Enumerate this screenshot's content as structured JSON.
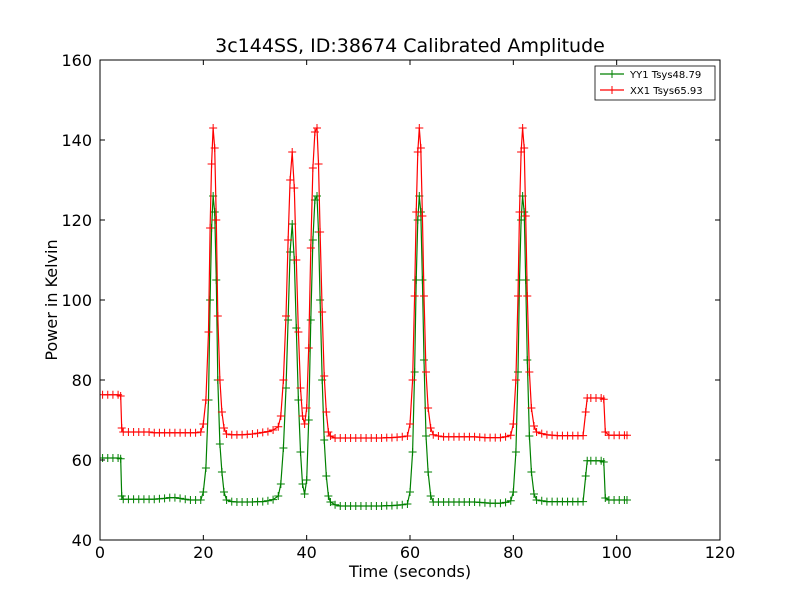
{
  "chart_data": {
    "type": "line",
    "title": "3c144SS, ID:38674 Calibrated Amplitude",
    "xlabel": "Time (seconds)",
    "ylabel": "Power in Kelvin",
    "xlim": [
      0,
      120
    ],
    "ylim": [
      40,
      160
    ],
    "xticks": [
      "0",
      "20",
      "40",
      "60",
      "80",
      "100",
      "120"
    ],
    "yticks": [
      "40",
      "60",
      "80",
      "100",
      "120",
      "140",
      "160"
    ],
    "grid": false,
    "legend_position": "top-right",
    "colors": {
      "YY1": "#008000",
      "XX1": "#ff0000"
    },
    "series": [
      {
        "name": "YY1 Tsys48.79",
        "color": "#008000",
        "marker": "+",
        "points": [
          [
            0.5,
            60.5
          ],
          [
            1.5,
            60.5
          ],
          [
            2.5,
            60.5
          ],
          [
            3.5,
            60.5
          ],
          [
            4.0,
            60.3
          ],
          [
            4.2,
            51
          ],
          [
            4.5,
            50.2
          ],
          [
            5.5,
            50.2
          ],
          [
            6.5,
            50.2
          ],
          [
            7.5,
            50.2
          ],
          [
            8.5,
            50.2
          ],
          [
            9.5,
            50.2
          ],
          [
            10.5,
            50.2
          ],
          [
            11.5,
            50.3
          ],
          [
            12.5,
            50.4
          ],
          [
            13.5,
            50.6
          ],
          [
            14.5,
            50.6
          ],
          [
            15.5,
            50.4
          ],
          [
            16.5,
            50.2
          ],
          [
            17.5,
            50
          ],
          [
            18.5,
            50
          ],
          [
            19.5,
            50
          ],
          [
            20.0,
            52
          ],
          [
            20.5,
            58
          ],
          [
            21.0,
            75
          ],
          [
            21.3,
            100
          ],
          [
            21.6,
            118
          ],
          [
            21.9,
            126
          ],
          [
            22.2,
            122
          ],
          [
            22.5,
            105
          ],
          [
            22.8,
            80
          ],
          [
            23.2,
            64
          ],
          [
            23.6,
            57
          ],
          [
            24.0,
            52
          ],
          [
            24.5,
            50
          ],
          [
            25.5,
            49.6
          ],
          [
            26.5,
            49.5
          ],
          [
            27.5,
            49.5
          ],
          [
            28.5,
            49.5
          ],
          [
            29.5,
            49.5
          ],
          [
            30.5,
            49.6
          ],
          [
            31.5,
            49.6
          ],
          [
            32.5,
            49.8
          ],
          [
            33.5,
            50.1
          ],
          [
            34.5,
            51
          ],
          [
            35.0,
            54
          ],
          [
            35.5,
            63
          ],
          [
            36.0,
            78
          ],
          [
            36.4,
            95
          ],
          [
            36.8,
            112
          ],
          [
            37.2,
            119
          ],
          [
            37.6,
            110
          ],
          [
            38.0,
            93
          ],
          [
            38.4,
            75
          ],
          [
            38.8,
            62
          ],
          [
            39.2,
            54
          ],
          [
            39.6,
            51.5
          ],
          [
            40.0,
            55
          ],
          [
            40.4,
            70
          ],
          [
            40.8,
            95
          ],
          [
            41.2,
            115
          ],
          [
            41.6,
            125
          ],
          [
            42.0,
            126
          ],
          [
            42.3,
            117
          ],
          [
            42.6,
            100
          ],
          [
            43.0,
            80
          ],
          [
            43.4,
            65
          ],
          [
            43.8,
            56
          ],
          [
            44.2,
            51
          ],
          [
            44.6,
            49.5
          ],
          [
            45.5,
            48.8
          ],
          [
            46.5,
            48.5
          ],
          [
            47.5,
            48.5
          ],
          [
            48.5,
            48.5
          ],
          [
            49.5,
            48.5
          ],
          [
            50.5,
            48.5
          ],
          [
            51.5,
            48.5
          ],
          [
            52.5,
            48.5
          ],
          [
            53.5,
            48.5
          ],
          [
            54.5,
            48.5
          ],
          [
            55.5,
            48.6
          ],
          [
            56.5,
            48.6
          ],
          [
            57.5,
            48.7
          ],
          [
            58.5,
            48.8
          ],
          [
            59.5,
            49
          ],
          [
            60.0,
            52
          ],
          [
            60.5,
            62
          ],
          [
            60.9,
            82
          ],
          [
            61.2,
            105
          ],
          [
            61.5,
            120
          ],
          [
            61.8,
            126
          ],
          [
            62.1,
            122
          ],
          [
            62.4,
            105
          ],
          [
            62.7,
            85
          ],
          [
            63.1,
            66
          ],
          [
            63.5,
            57
          ],
          [
            64.0,
            51
          ],
          [
            64.5,
            49.5
          ],
          [
            65.5,
            49.5
          ],
          [
            66.5,
            49.5
          ],
          [
            67.5,
            49.5
          ],
          [
            68.5,
            49.5
          ],
          [
            69.5,
            49.5
          ],
          [
            70.5,
            49.5
          ],
          [
            71.5,
            49.5
          ],
          [
            72.5,
            49.5
          ],
          [
            73.5,
            49.4
          ],
          [
            74.5,
            49.3
          ],
          [
            75.5,
            49.2
          ],
          [
            76.5,
            49.2
          ],
          [
            77.5,
            49.2
          ],
          [
            78.5,
            49.4
          ],
          [
            79.5,
            49.8
          ],
          [
            80.0,
            52
          ],
          [
            80.5,
            62
          ],
          [
            80.9,
            82
          ],
          [
            81.2,
            105
          ],
          [
            81.5,
            120
          ],
          [
            81.8,
            126
          ],
          [
            82.1,
            122
          ],
          [
            82.4,
            105
          ],
          [
            82.7,
            85
          ],
          [
            83.1,
            66
          ],
          [
            83.5,
            57
          ],
          [
            84.0,
            51.5
          ],
          [
            84.5,
            50
          ],
          [
            85.5,
            49.8
          ],
          [
            86.5,
            49.6
          ],
          [
            87.5,
            49.6
          ],
          [
            88.5,
            49.6
          ],
          [
            89.5,
            49.6
          ],
          [
            90.5,
            49.6
          ],
          [
            91.5,
            49.6
          ],
          [
            92.5,
            49.6
          ],
          [
            93.5,
            49.6
          ],
          [
            94.0,
            56
          ],
          [
            94.3,
            59.8
          ],
          [
            95.0,
            59.8
          ],
          [
            96.0,
            59.8
          ],
          [
            97.0,
            59.8
          ],
          [
            97.5,
            59.5
          ],
          [
            97.8,
            50.5
          ],
          [
            98.5,
            50
          ],
          [
            99.5,
            50
          ],
          [
            100.5,
            50
          ],
          [
            101.5,
            50
          ],
          [
            102.0,
            50
          ]
        ]
      },
      {
        "name": "XX1 Tsys65.93",
        "color": "#ff0000",
        "marker": "+",
        "points": [
          [
            0.5,
            76.3
          ],
          [
            1.5,
            76.3
          ],
          [
            2.5,
            76.3
          ],
          [
            3.5,
            76.3
          ],
          [
            4.0,
            76
          ],
          [
            4.2,
            68
          ],
          [
            4.5,
            67
          ],
          [
            5.5,
            67
          ],
          [
            6.5,
            67
          ],
          [
            7.5,
            67
          ],
          [
            8.5,
            67
          ],
          [
            9.5,
            67
          ],
          [
            10.5,
            66.8
          ],
          [
            11.5,
            66.8
          ],
          [
            12.5,
            66.8
          ],
          [
            13.5,
            66.8
          ],
          [
            14.5,
            66.8
          ],
          [
            15.5,
            66.8
          ],
          [
            16.5,
            66.8
          ],
          [
            17.5,
            66.8
          ],
          [
            18.5,
            66.8
          ],
          [
            19.5,
            67
          ],
          [
            20.0,
            69
          ],
          [
            20.5,
            75
          ],
          [
            21.0,
            92
          ],
          [
            21.3,
            118
          ],
          [
            21.6,
            134
          ],
          [
            21.9,
            143
          ],
          [
            22.2,
            138
          ],
          [
            22.5,
            120
          ],
          [
            22.8,
            96
          ],
          [
            23.2,
            80
          ],
          [
            23.6,
            72
          ],
          [
            24.0,
            68
          ],
          [
            24.5,
            66.5
          ],
          [
            25.5,
            66.3
          ],
          [
            26.5,
            66.3
          ],
          [
            27.5,
            66.3
          ],
          [
            28.5,
            66.4
          ],
          [
            29.5,
            66.5
          ],
          [
            30.5,
            66.7
          ],
          [
            31.5,
            66.9
          ],
          [
            32.5,
            67.1
          ],
          [
            33.5,
            67.5
          ],
          [
            34.5,
            68.3
          ],
          [
            35.0,
            71
          ],
          [
            35.5,
            80
          ],
          [
            36.0,
            96
          ],
          [
            36.4,
            115
          ],
          [
            36.8,
            130
          ],
          [
            37.2,
            137
          ],
          [
            37.6,
            128
          ],
          [
            38.0,
            110
          ],
          [
            38.4,
            92
          ],
          [
            38.8,
            78
          ],
          [
            39.2,
            71
          ],
          [
            39.6,
            69
          ],
          [
            40.0,
            73
          ],
          [
            40.4,
            88
          ],
          [
            40.8,
            113
          ],
          [
            41.2,
            133
          ],
          [
            41.6,
            142
          ],
          [
            42.0,
            143
          ],
          [
            42.3,
            134
          ],
          [
            42.6,
            117
          ],
          [
            43.0,
            97
          ],
          [
            43.4,
            81
          ],
          [
            43.8,
            72
          ],
          [
            44.2,
            67
          ],
          [
            44.6,
            66
          ],
          [
            45.5,
            65.5
          ],
          [
            46.5,
            65.5
          ],
          [
            47.5,
            65.5
          ],
          [
            48.5,
            65.5
          ],
          [
            49.5,
            65.5
          ],
          [
            50.5,
            65.5
          ],
          [
            51.5,
            65.5
          ],
          [
            52.5,
            65.5
          ],
          [
            53.5,
            65.5
          ],
          [
            54.5,
            65.5
          ],
          [
            55.5,
            65.6
          ],
          [
            56.5,
            65.6
          ],
          [
            57.5,
            65.7
          ],
          [
            58.5,
            65.8
          ],
          [
            59.5,
            66
          ],
          [
            60.0,
            69
          ],
          [
            60.5,
            80
          ],
          [
            60.9,
            101
          ],
          [
            61.2,
            122
          ],
          [
            61.5,
            137
          ],
          [
            61.8,
            143
          ],
          [
            62.1,
            138
          ],
          [
            62.4,
            121
          ],
          [
            62.7,
            101
          ],
          [
            63.1,
            82
          ],
          [
            63.5,
            73
          ],
          [
            64.0,
            68
          ],
          [
            64.5,
            66.3
          ],
          [
            65.5,
            66
          ],
          [
            66.5,
            65.8
          ],
          [
            67.5,
            65.8
          ],
          [
            68.5,
            65.8
          ],
          [
            69.5,
            65.8
          ],
          [
            70.5,
            65.8
          ],
          [
            71.5,
            65.8
          ],
          [
            72.5,
            65.8
          ],
          [
            73.5,
            65.7
          ],
          [
            74.5,
            65.6
          ],
          [
            75.5,
            65.6
          ],
          [
            76.5,
            65.6
          ],
          [
            77.5,
            65.6
          ],
          [
            78.5,
            65.8
          ],
          [
            79.5,
            66.2
          ],
          [
            80.0,
            69
          ],
          [
            80.5,
            80
          ],
          [
            80.9,
            101
          ],
          [
            81.2,
            122
          ],
          [
            81.5,
            137
          ],
          [
            81.8,
            143
          ],
          [
            82.1,
            138
          ],
          [
            82.4,
            121
          ],
          [
            82.7,
            101
          ],
          [
            83.1,
            82
          ],
          [
            83.5,
            73
          ],
          [
            84.0,
            68.5
          ],
          [
            84.5,
            67
          ],
          [
            85.5,
            66.6
          ],
          [
            86.5,
            66.3
          ],
          [
            87.5,
            66.2
          ],
          [
            88.5,
            66.1
          ],
          [
            89.5,
            66.1
          ],
          [
            90.5,
            66.1
          ],
          [
            91.5,
            66.1
          ],
          [
            92.5,
            66.1
          ],
          [
            93.5,
            66.1
          ],
          [
            94.0,
            72
          ],
          [
            94.3,
            75.5
          ],
          [
            95.0,
            75.5
          ],
          [
            96.0,
            75.5
          ],
          [
            97.0,
            75.5
          ],
          [
            97.5,
            75.2
          ],
          [
            97.8,
            67
          ],
          [
            98.5,
            66.2
          ],
          [
            99.5,
            66.2
          ],
          [
            100.5,
            66.2
          ],
          [
            101.5,
            66.2
          ],
          [
            102.0,
            66.2
          ]
        ]
      }
    ]
  }
}
